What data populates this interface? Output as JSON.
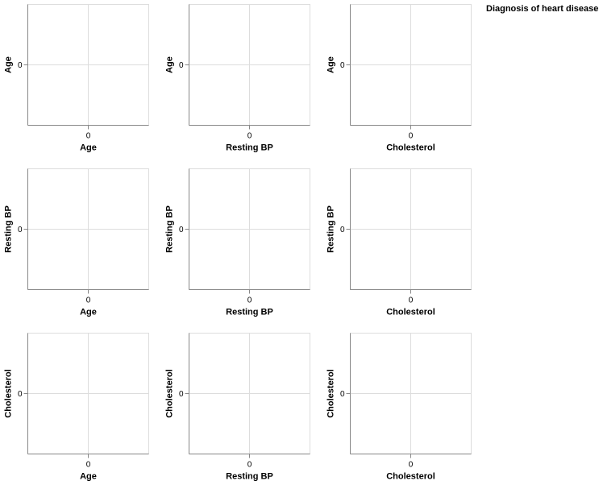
{
  "legend": {
    "title": "Diagnosis of heart disease"
  },
  "chart_data": {
    "type": "scatter",
    "layout": "scatter-matrix",
    "variables": [
      "Age",
      "Resting BP",
      "Cholesterol"
    ],
    "tick_label": "0",
    "grid": true,
    "legend_placement": "top-right",
    "panels": [
      {
        "row": "Age",
        "col": "Age",
        "xlabel": "Age",
        "ylabel": "Age",
        "points": []
      },
      {
        "row": "Age",
        "col": "Resting BP",
        "xlabel": "Resting BP",
        "ylabel": "Age",
        "points": []
      },
      {
        "row": "Age",
        "col": "Cholesterol",
        "xlabel": "Cholesterol",
        "ylabel": "Age",
        "points": []
      },
      {
        "row": "Resting BP",
        "col": "Age",
        "xlabel": "Age",
        "ylabel": "Resting BP",
        "points": []
      },
      {
        "row": "Resting BP",
        "col": "Resting BP",
        "xlabel": "Resting BP",
        "ylabel": "Resting BP",
        "points": []
      },
      {
        "row": "Resting BP",
        "col": "Cholesterol",
        "xlabel": "Cholesterol",
        "ylabel": "Resting BP",
        "points": []
      },
      {
        "row": "Cholesterol",
        "col": "Age",
        "xlabel": "Age",
        "ylabel": "Cholesterol",
        "points": []
      },
      {
        "row": "Cholesterol",
        "col": "Resting BP",
        "xlabel": "Resting BP",
        "ylabel": "Cholesterol",
        "points": []
      },
      {
        "row": "Cholesterol",
        "col": "Cholesterol",
        "xlabel": "Cholesterol",
        "ylabel": "Cholesterol",
        "points": []
      }
    ]
  }
}
